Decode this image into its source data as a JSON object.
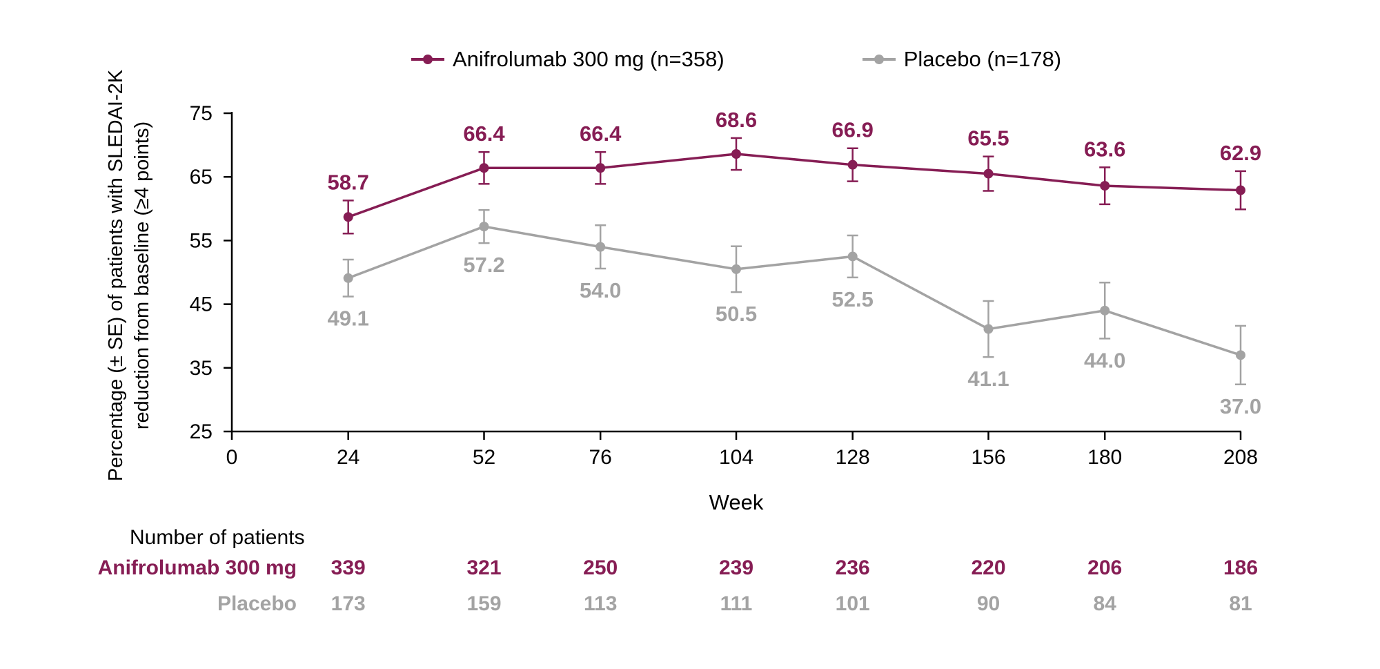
{
  "colors": {
    "anifrolumab": "#861d54",
    "placebo": "#a3a3a3",
    "axis": "#000000"
  },
  "legend": [
    {
      "label": "Anifrolumab 300 mg (n=358)",
      "series": "anifrolumab"
    },
    {
      "label": "Placebo (n=178)",
      "series": "placebo"
    }
  ],
  "chart_data": {
    "type": "line",
    "x": [
      24,
      52,
      76,
      104,
      128,
      156,
      180,
      208
    ],
    "x_ticks": [
      0,
      24,
      52,
      76,
      104,
      128,
      156,
      180,
      208
    ],
    "xlabel": "Week",
    "ylabel_line1": "Percentage (± SE) of patients with SLEDAI-2K",
    "ylabel_line2": "reduction from baseline (≥4 points)",
    "ylim": [
      25,
      75
    ],
    "y_ticks": [
      25,
      35,
      45,
      55,
      65,
      75
    ],
    "grid": false,
    "legend_position": "top",
    "series": [
      {
        "name": "Anifrolumab 300 mg (n=358)",
        "color": "#861d54",
        "values": [
          58.7,
          66.4,
          66.4,
          68.6,
          66.9,
          65.5,
          63.6,
          62.9
        ],
        "se": [
          2.6,
          2.5,
          2.5,
          2.5,
          2.6,
          2.7,
          2.9,
          3.0
        ],
        "label_position": "above"
      },
      {
        "name": "Placebo (n=178)",
        "color": "#a3a3a3",
        "values": [
          49.1,
          57.2,
          54.0,
          50.5,
          52.5,
          41.1,
          44.0,
          37.0
        ],
        "se": [
          2.9,
          2.6,
          3.4,
          3.6,
          3.3,
          4.4,
          4.4,
          4.6
        ],
        "label_position": "below"
      }
    ]
  },
  "table": {
    "header": "Number of patients",
    "rows": [
      {
        "label": "Anifrolumab 300 mg",
        "series": "anifrolumab",
        "color": "#861d54",
        "values": [
          "339",
          "321",
          "250",
          "239",
          "236",
          "220",
          "206",
          "186"
        ]
      },
      {
        "label": "Placebo",
        "series": "placebo",
        "color": "#a3a3a3",
        "values": [
          "173",
          "159",
          "113",
          "111",
          "101",
          "90",
          "84",
          "81"
        ]
      }
    ]
  }
}
